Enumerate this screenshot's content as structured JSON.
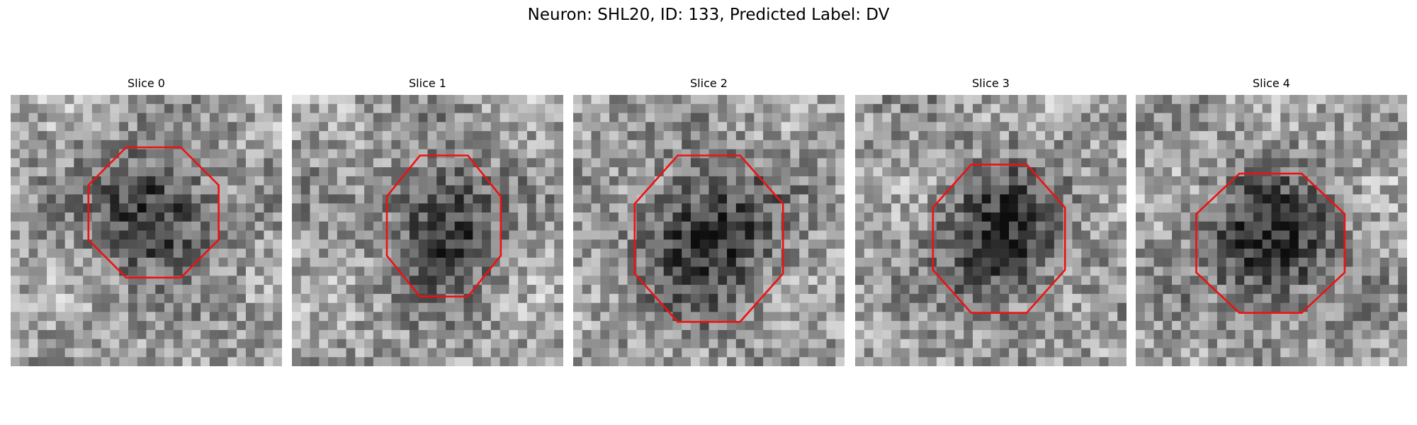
{
  "figure": {
    "title": "Neuron: SHL20, ID: 133, Predicted Label: DV",
    "panels": [
      {
        "title": "Slice 0"
      },
      {
        "title": "Slice 1"
      },
      {
        "title": "Slice 2"
      },
      {
        "title": "Slice 3"
      },
      {
        "title": "Slice 4"
      }
    ]
  }
}
